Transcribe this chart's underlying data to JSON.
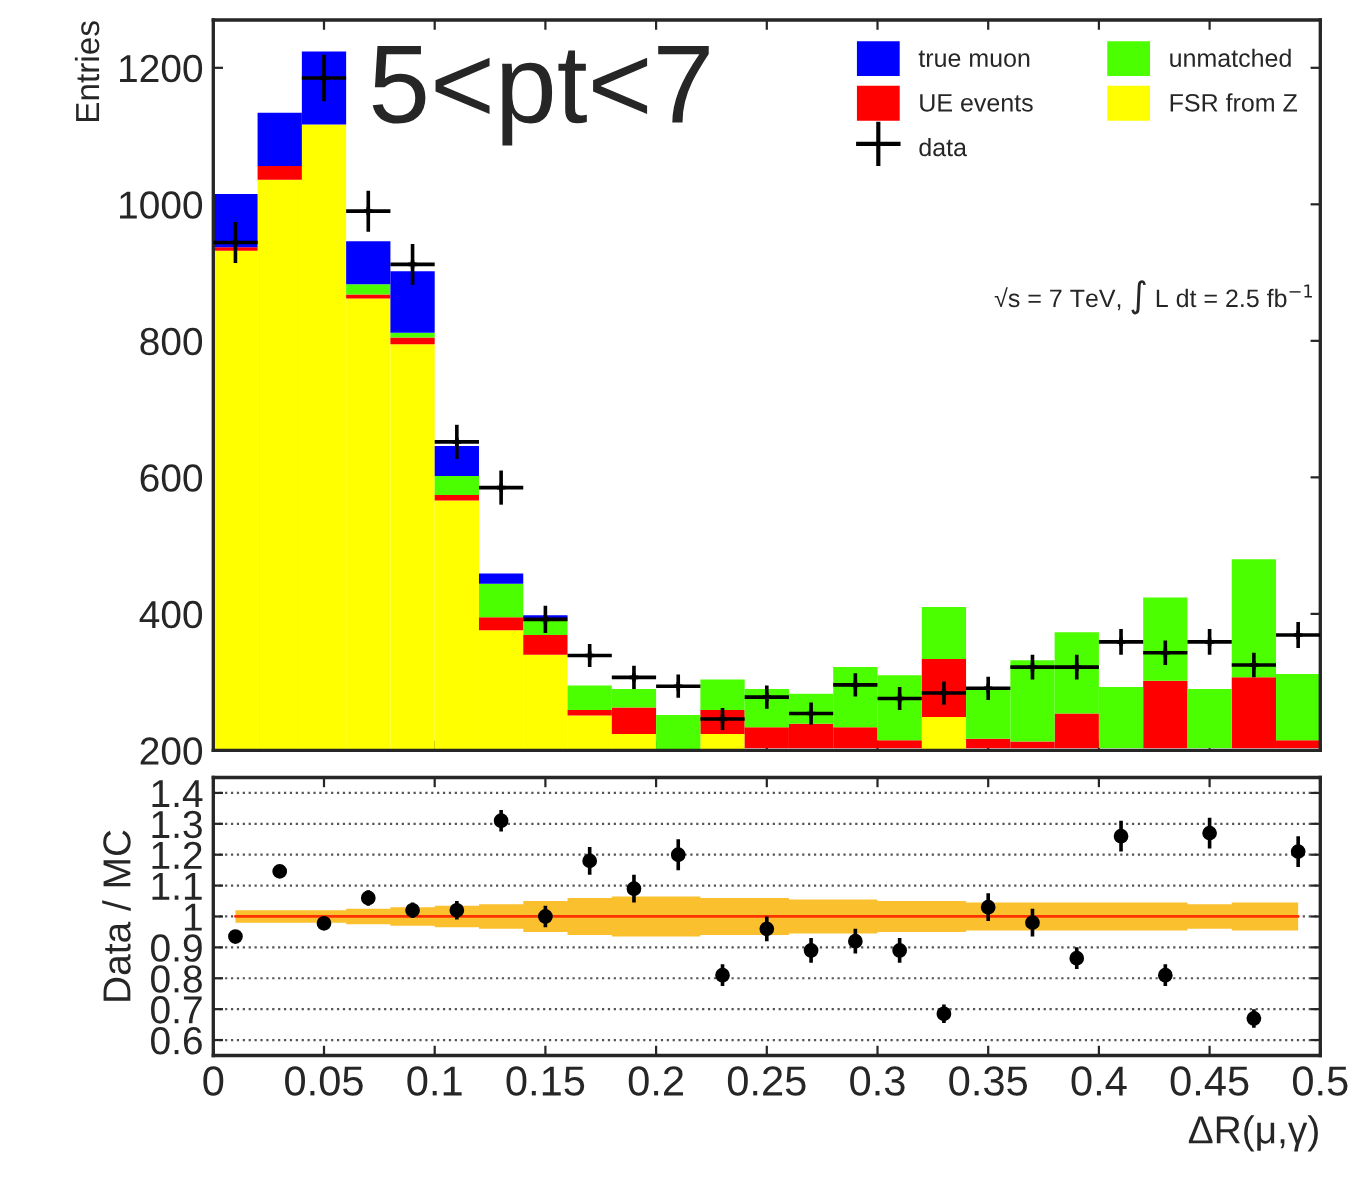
{
  "chart_data": [
    {
      "type": "bar",
      "ylabel": "Entries",
      "legend": "top right",
      "tick_labels": "y",
      "x": [
        0.01,
        0.03,
        0.05,
        0.07,
        0.09,
        0.11,
        0.13,
        0.15,
        0.17,
        0.19,
        0.21,
        0.23,
        0.25,
        0.27,
        0.29,
        0.31,
        0.33,
        0.35,
        0.37,
        0.39,
        0.41,
        0.43,
        0.45,
        0.47,
        0.49
      ],
      "xticks": [
        {
          "value": 0,
          "label": null
        },
        {
          "value": 0.05,
          "label": null
        },
        {
          "value": 0.1,
          "label": null
        },
        {
          "value": 0.15,
          "label": null
        },
        {
          "value": 0.2,
          "label": null
        },
        {
          "value": 0.25,
          "label": null
        },
        {
          "value": 0.3,
          "label": null
        },
        {
          "value": 0.35,
          "label": null
        },
        {
          "value": 0.4,
          "label": null
        },
        {
          "value": 0.45,
          "label": null
        },
        {
          "value": 0.5,
          "label": null
        }
      ],
      "xlim": [
        0,
        0.5
      ],
      "ylim": [
        200,
        1270
      ],
      "yticks": [
        200,
        400,
        600,
        800,
        1000,
        1200
      ],
      "series": [
        {
          "name": "FSR from Z",
          "color": "#ffff00",
          "base": [
            0,
            0,
            0,
            0,
            0,
            0,
            0,
            0,
            0,
            0,
            null,
            0,
            null,
            null,
            null,
            null,
            0,
            null,
            null,
            null,
            null,
            null,
            null,
            null,
            null
          ],
          "values": [
            932,
            1036,
            1117,
            862,
            795,
            566,
            376,
            340,
            251,
            224,
            null,
            224,
            null,
            null,
            null,
            null,
            249,
            null,
            null,
            null,
            null,
            null,
            null,
            null,
            null
          ]
        },
        {
          "name": "UE events",
          "color": "#ff0000",
          "base": [
            932,
            1036,
            null,
            862,
            795,
            566,
            376,
            340,
            251,
            224,
            null,
            224,
            203,
            203,
            203,
            203,
            249,
            203,
            203,
            203,
            null,
            203,
            null,
            203,
            203
          ],
          "values": [
            5,
            20,
            null,
            6,
            10,
            8,
            19,
            29,
            8,
            39,
            null,
            35,
            31,
            36,
            31,
            12,
            85,
            14,
            10,
            51,
            null,
            99,
            null,
            104,
            12
          ]
        },
        {
          "name": "unmatched",
          "color": "#4cff00",
          "base": [
            null,
            null,
            null,
            868,
            805,
            574,
            395,
            369,
            259,
            263,
            200,
            259,
            234,
            239,
            234,
            215,
            334,
            217,
            213,
            254,
            203,
            302,
            203,
            307,
            215
          ],
          "values": [
            null,
            null,
            null,
            15,
            7,
            28,
            49,
            25,
            36,
            27,
            52,
            45,
            56,
            44,
            88,
            95,
            76,
            76,
            119,
            119,
            90,
            122,
            87,
            173,
            97
          ]
        },
        {
          "name": "true muon",
          "color": "#0000ff",
          "base": [
            937,
            1056,
            1117,
            883,
            812,
            602,
            444,
            394,
            null,
            null,
            null,
            null,
            null,
            null,
            null,
            null,
            null,
            null,
            null,
            null,
            null,
            null,
            null,
            null,
            null
          ],
          "values": [
            78,
            78,
            107,
            63,
            90,
            44,
            15,
            4,
            null,
            null,
            null,
            null,
            null,
            null,
            null,
            null,
            null,
            null,
            null,
            null,
            null,
            null,
            null,
            null,
            null
          ]
        },
        {
          "name": "data",
          "type": "scatter",
          "color": "#000000",
          "marker": "cross",
          "x": [
            0.01,
            0.03,
            0.05,
            0.07,
            0.09,
            0.11,
            0.13,
            0.15,
            0.17,
            0.19,
            0.21,
            0.23,
            0.25,
            0.27,
            0.29,
            0.31,
            0.33,
            0.35,
            0.37,
            0.39,
            0.41,
            0.43,
            0.45,
            0.47,
            0.49
          ],
          "values": [
            944,
            null,
            1185,
            990,
            912,
            652,
            585,
            392,
            339,
            307,
            294,
            246,
            278,
            254,
            296,
            276,
            284,
            291,
            322,
            322,
            359,
            343,
            359,
            325,
            369
          ],
          "errors": [
            30,
            null,
            34,
            30,
            30,
            25,
            25,
            20,
            17,
            17,
            17,
            16,
            17,
            16,
            17,
            17,
            17,
            17,
            18,
            18,
            19,
            18,
            19,
            18,
            19
          ],
          "xerrors": [
            0.01,
            null,
            0.01,
            0.01,
            0.01,
            0.01,
            0.01,
            0.01,
            0.01,
            0.01,
            0.01,
            0.01,
            0.01,
            0.01,
            0.01,
            0.01,
            0.01,
            0.01,
            0.01,
            0.01,
            0.01,
            0.01,
            0.01,
            0.01,
            0.01
          ]
        }
      ],
      "annotations": [
        "5<pt<7",
        "√s = 7 TeV, ∫ L dt = 2.5 fb$^{−1}$"
      ]
    },
    {
      "type": "scatter",
      "xlabel": "ΔR(μ,γ)",
      "ylabel": "Data / MC",
      "grid": "y",
      "xlim": [
        0,
        0.5
      ],
      "xticks": [
        0,
        0.05,
        0.1,
        0.15,
        0.2,
        0.25,
        0.3,
        0.35,
        0.4,
        0.45,
        0.5
      ],
      "ylim": [
        0.55,
        1.45
      ],
      "yticks": [
        0.6,
        0.7,
        0.8,
        0.9,
        1,
        1.1,
        1.2,
        1.3,
        1.4
      ],
      "series": [
        {
          "type": "line",
          "color": "#ff3300",
          "x": [
            0.01,
            0.03,
            0.05,
            0.07,
            0.09,
            0.11,
            0.13,
            0.15,
            0.17,
            0.19,
            0.21,
            0.23,
            0.25,
            0.27,
            0.29,
            0.31,
            0.33,
            0.35,
            0.37,
            0.39,
            0.41,
            0.43,
            0.45,
            0.47,
            0.49
          ],
          "values": [
            1,
            1,
            1,
            1,
            1,
            1,
            1,
            1,
            1,
            1,
            1,
            1,
            1,
            1,
            1,
            1,
            1,
            1,
            1,
            1,
            1,
            1,
            1,
            1,
            1
          ],
          "lower": [
            0.98,
            0.98,
            0.98,
            0.975,
            0.97,
            0.965,
            0.96,
            0.95,
            0.94,
            0.935,
            0.935,
            0.94,
            0.94,
            0.945,
            0.945,
            0.95,
            0.95,
            0.955,
            0.955,
            0.955,
            0.955,
            0.955,
            0.96,
            0.955,
            0.955
          ],
          "upper": [
            1.02,
            1.02,
            1.02,
            1.025,
            1.03,
            1.035,
            1.04,
            1.05,
            1.06,
            1.065,
            1.065,
            1.06,
            1.06,
            1.055,
            1.055,
            1.05,
            1.05,
            1.045,
            1.045,
            1.045,
            1.045,
            1.045,
            1.04,
            1.045,
            1.045
          ]
        },
        {
          "type": "scatter",
          "color": "#000000",
          "marker": "circle",
          "x": [
            0.01,
            0.03,
            0.05,
            0.07,
            0.09,
            0.11,
            0.13,
            0.15,
            0.17,
            0.19,
            0.21,
            0.23,
            0.25,
            0.27,
            0.29,
            0.31,
            0.33,
            0.35,
            0.37,
            0.39,
            0.41,
            0.43,
            0.45,
            0.47,
            0.49
          ],
          "values": [
            0.935,
            1.146,
            0.978,
            1.06,
            1.02,
            1.02,
            1.31,
            1.0,
            1.18,
            1.09,
            1.2,
            0.81,
            0.96,
            0.89,
            0.92,
            0.89,
            0.685,
            1.03,
            0.98,
            0.865,
            1.26,
            0.81,
            1.27,
            0.67,
            1.21
          ],
          "errors": [
            0.02,
            0.02,
            0.02,
            0.025,
            0.025,
            0.03,
            0.035,
            0.035,
            0.045,
            0.045,
            0.05,
            0.035,
            0.04,
            0.04,
            0.04,
            0.04,
            0.03,
            0.045,
            0.045,
            0.035,
            0.05,
            0.035,
            0.05,
            0.03,
            0.05
          ]
        }
      ]
    }
  ]
}
